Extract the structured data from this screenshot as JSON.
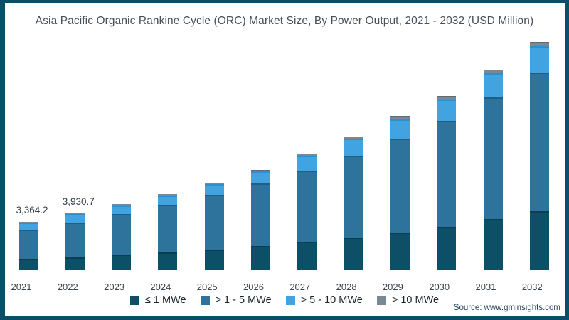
{
  "title": "Asia Pacific Organic Rankine Cycle (ORC) Market Size, By Power Output, 2021 - 2032 (USD Million)",
  "source_text": "Source: www.gminsights.com",
  "colors": {
    "frame_border": "#0B4E68",
    "axis_line": "#D9D9D9",
    "title_text": "#46505B",
    "tick_text": "#3A444E",
    "bar_label_text": "#353F4A",
    "source_text": "#24405B"
  },
  "chart_data": {
    "type": "bar",
    "subtype": "stacked",
    "title": "Asia Pacific Organic Rankine Cycle (ORC) Market Size, By Power Output, 2021 - 2032 (USD Million)",
    "unit": "USD Million",
    "categories": [
      "2021",
      "2022",
      "2023",
      "2024",
      "2025",
      "2026",
      "2027",
      "2028",
      "2029",
      "2030",
      "2031",
      "2032"
    ],
    "series": [
      {
        "name": "≤ 1 MWe",
        "color": "#0E4F68",
        "edge_color": "#0A3E53",
        "values": [
          730,
          860,
          1030,
          1200,
          1410,
          1650,
          1950,
          2240,
          2610,
          2990,
          3540,
          4110
        ]
      },
      {
        "name": "> 1 - 5 MWe",
        "color": "#2E739C",
        "edge_color": "#1F5E85",
        "values": [
          2060,
          2435,
          2860,
          3325,
          3820,
          4380,
          5015,
          5750,
          6605,
          7455,
          8570,
          9750
        ]
      },
      {
        "name": "> 5 - 10 MWe",
        "color": "#41A4E0",
        "edge_color": "#2F8FCB",
        "values": [
          530,
          585,
          630,
          690,
          770,
          850,
          1035,
          1190,
          1350,
          1500,
          1690,
          1840
        ]
      },
      {
        "name": "> 10 MWe",
        "color": "#7A8894",
        "edge_color": "#5E6A75",
        "values": [
          44.2,
          50.7,
          60,
          75,
          90,
          110,
          150,
          185,
          225,
          255,
          270,
          290
        ]
      }
    ],
    "totals_labeled": {
      "2021": "3,364.2",
      "2022": "3,930.7"
    },
    "xlabel": "",
    "ylabel": "",
    "ylim": [
      0,
      16500
    ],
    "grid": false,
    "y_axis_visible": false,
    "legend_position": "bottom"
  }
}
